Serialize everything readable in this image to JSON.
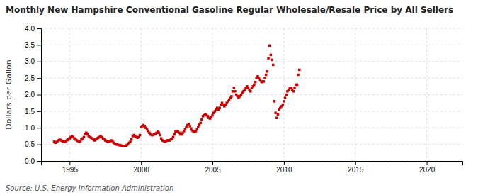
{
  "chart_data": {
    "type": "scatter",
    "title": "Monthly New Hampshire Conventional Gasoline Regular Wholesale/Resale Price by All Sellers",
    "ylabel": "Dollars per Gallon",
    "source": "Source: U.S. Energy Information Administration",
    "color": "#CC0000",
    "marker": "square",
    "grid": true,
    "xlim": [
      1993.0,
      2022.5
    ],
    "ylim": [
      0.0,
      4.0
    ],
    "xticks": [
      1995,
      2000,
      2005,
      2010,
      2015,
      2020
    ],
    "yticks": [
      {
        "value": 0.0,
        "label": "0.0"
      },
      0.5,
      {
        "value": 1.0,
        "label": "1.0"
      },
      1.5,
      {
        "value": 2.0,
        "label": "2.0"
      },
      2.5,
      {
        "value": 3.0,
        "label": "3.0"
      },
      3.5,
      {
        "value": 4.0,
        "label": "4.0"
      }
    ],
    "x": [
      1993.917,
      1994.0,
      1994.083,
      1994.167,
      1994.25,
      1994.333,
      1994.417,
      1994.5,
      1994.583,
      1994.667,
      1994.75,
      1994.833,
      1994.917,
      1995.0,
      1995.083,
      1995.167,
      1995.25,
      1995.333,
      1995.417,
      1995.5,
      1995.583,
      1995.667,
      1995.75,
      1995.833,
      1995.917,
      1996.0,
      1996.083,
      1996.167,
      1996.25,
      1996.333,
      1996.417,
      1996.5,
      1996.583,
      1996.667,
      1996.75,
      1996.833,
      1996.917,
      1997.0,
      1997.083,
      1997.167,
      1997.25,
      1997.333,
      1997.417,
      1997.5,
      1997.583,
      1997.667,
      1997.75,
      1997.833,
      1997.917,
      1998.0,
      1998.083,
      1998.167,
      1998.25,
      1998.333,
      1998.417,
      1998.5,
      1998.583,
      1998.667,
      1998.75,
      1998.833,
      1998.917,
      1999.0,
      1999.083,
      1999.167,
      1999.25,
      1999.333,
      1999.417,
      1999.5,
      1999.583,
      1999.667,
      1999.75,
      1999.833,
      1999.917,
      2000.0,
      2000.083,
      2000.167,
      2000.25,
      2000.333,
      2000.417,
      2000.5,
      2000.583,
      2000.667,
      2000.75,
      2000.833,
      2000.917,
      2001.0,
      2001.083,
      2001.167,
      2001.25,
      2001.333,
      2001.417,
      2001.5,
      2001.583,
      2001.667,
      2001.75,
      2001.833,
      2001.917,
      2002.0,
      2002.083,
      2002.167,
      2002.25,
      2002.333,
      2002.417,
      2002.5,
      2002.583,
      2002.667,
      2002.75,
      2002.833,
      2002.917,
      2003.0,
      2003.083,
      2003.167,
      2003.25,
      2003.333,
      2003.417,
      2003.5,
      2003.583,
      2003.667,
      2003.75,
      2003.833,
      2003.917,
      2004.0,
      2004.083,
      2004.167,
      2004.25,
      2004.333,
      2004.417,
      2004.5,
      2004.583,
      2004.667,
      2004.75,
      2004.833,
      2004.917,
      2005.0,
      2005.083,
      2005.167,
      2005.25,
      2005.333,
      2005.417,
      2005.5,
      2005.583,
      2005.667,
      2005.75,
      2005.833,
      2005.917,
      2006.0,
      2006.083,
      2006.167,
      2006.25,
      2006.333,
      2006.417,
      2006.5,
      2006.583,
      2006.667,
      2006.75,
      2006.833,
      2006.917,
      2007.0,
      2007.083,
      2007.167,
      2007.25,
      2007.333,
      2007.417,
      2007.5,
      2007.583,
      2007.667,
      2007.75,
      2007.833,
      2007.917,
      2008.0,
      2008.083,
      2008.167,
      2008.25,
      2008.333,
      2008.417,
      2008.5,
      2008.583,
      2008.667,
      2008.75,
      2008.833,
      2008.917,
      2009.0,
      2009.083,
      2009.167,
      2009.25,
      2009.333,
      2009.417,
      2009.5,
      2009.583,
      2009.667,
      2009.75,
      2009.833,
      2009.917,
      2010.0,
      2010.083,
      2010.167,
      2010.25,
      2010.333,
      2010.417,
      2010.5,
      2010.583,
      2010.667,
      2010.75,
      2010.833,
      2010.917,
      2011.0,
      2011.083
    ],
    "values": [
      0.58,
      0.55,
      0.57,
      0.6,
      0.63,
      0.64,
      0.62,
      0.6,
      0.58,
      0.57,
      0.6,
      0.63,
      0.65,
      0.68,
      0.72,
      0.75,
      0.72,
      0.68,
      0.65,
      0.62,
      0.6,
      0.58,
      0.6,
      0.65,
      0.68,
      0.72,
      0.82,
      0.85,
      0.8,
      0.75,
      0.72,
      0.7,
      0.68,
      0.65,
      0.62,
      0.65,
      0.68,
      0.7,
      0.72,
      0.75,
      0.72,
      0.68,
      0.65,
      0.62,
      0.6,
      0.58,
      0.58,
      0.6,
      0.62,
      0.6,
      0.55,
      0.52,
      0.5,
      0.5,
      0.48,
      0.48,
      0.47,
      0.45,
      0.45,
      0.45,
      0.45,
      0.48,
      0.52,
      0.55,
      0.58,
      0.65,
      0.75,
      0.78,
      0.75,
      0.72,
      0.7,
      0.72,
      0.78,
      1.02,
      1.05,
      1.08,
      1.05,
      1.0,
      0.95,
      0.9,
      0.85,
      0.8,
      0.78,
      0.78,
      0.8,
      0.82,
      0.85,
      0.88,
      0.85,
      0.78,
      0.68,
      0.62,
      0.6,
      0.58,
      0.6,
      0.62,
      0.62,
      0.62,
      0.65,
      0.68,
      0.72,
      0.8,
      0.88,
      0.9,
      0.88,
      0.85,
      0.8,
      0.8,
      0.85,
      0.9,
      0.95,
      1.02,
      1.08,
      1.12,
      1.05,
      0.98,
      0.92,
      0.88,
      0.88,
      0.9,
      0.95,
      1.02,
      1.1,
      1.15,
      1.25,
      1.35,
      1.38,
      1.4,
      1.38,
      1.35,
      1.3,
      1.28,
      1.32,
      1.38,
      1.45,
      1.5,
      1.55,
      1.6,
      1.55,
      1.6,
      1.7,
      1.75,
      1.7,
      1.65,
      1.7,
      1.75,
      1.8,
      1.85,
      1.9,
      1.95,
      2.1,
      2.2,
      2.1,
      2.0,
      1.95,
      1.9,
      1.95,
      2.0,
      2.05,
      2.1,
      2.15,
      2.2,
      2.25,
      2.2,
      2.15,
      2.1,
      2.2,
      2.25,
      2.3,
      2.38,
      2.5,
      2.55,
      2.5,
      2.45,
      2.4,
      2.38,
      2.4,
      2.5,
      2.6,
      2.7,
      3.1,
      3.48,
      3.2,
      3.05,
      2.9,
      1.8,
      1.45,
      1.3,
      1.4,
      1.55,
      1.6,
      1.65,
      1.7,
      1.8,
      1.9,
      2.0,
      2.1,
      2.15,
      2.2,
      2.2,
      2.15,
      2.1,
      2.2,
      2.3,
      2.3,
      2.6,
      2.75
    ]
  }
}
